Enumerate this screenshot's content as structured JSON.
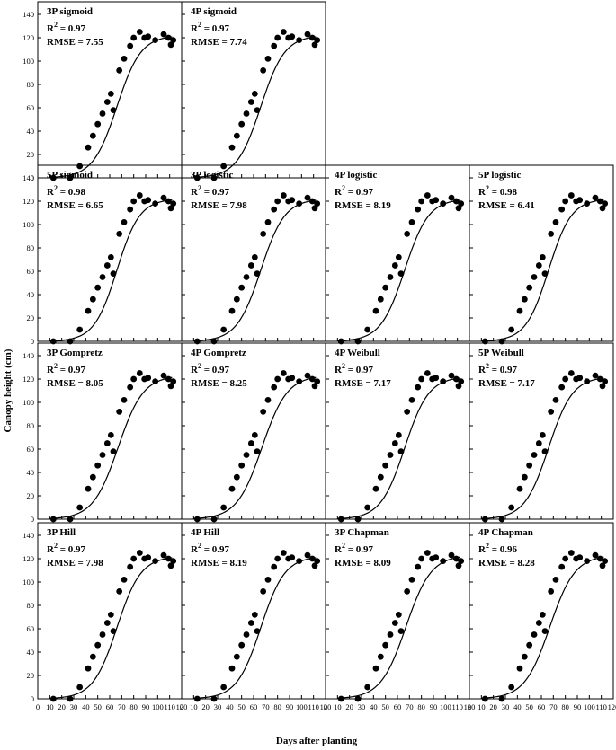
{
  "figure": {
    "ylabel": "Canopy height (cm)",
    "xlabel": "Days after planting"
  },
  "chart_data": {
    "type": "scatter",
    "xlabel": "Days after planting",
    "ylabel": "Canopy height (cm)",
    "xlim": [
      0,
      120
    ],
    "ylim": [
      0,
      140
    ],
    "xticks": [
      0,
      10,
      20,
      30,
      40,
      50,
      60,
      70,
      80,
      90,
      100,
      110,
      120
    ],
    "yticks": [
      0,
      20,
      40,
      60,
      80,
      100,
      120,
      140
    ],
    "observed": {
      "x": [
        13,
        27,
        35,
        42,
        46,
        50,
        54,
        58,
        61,
        63,
        68,
        72,
        77,
        80,
        85,
        89,
        92,
        98,
        105,
        109,
        111,
        113
      ],
      "y": [
        0,
        0,
        10,
        26,
        36,
        46,
        55,
        65,
        72,
        58,
        92,
        102,
        113,
        120,
        125,
        120,
        121,
        118,
        123,
        120,
        114,
        118
      ]
    },
    "panels": [
      {
        "row": 0,
        "col": 0,
        "model": "3P sigmoid",
        "r2": "0.97",
        "rmse": "7.55",
        "curve": {
          "asym": 122,
          "x0": 66,
          "b": 10
        }
      },
      {
        "row": 0,
        "col": 1,
        "model": "4P sigmoid",
        "r2": "0.97",
        "rmse": "7.74",
        "curve": {
          "asym": 122,
          "x0": 66,
          "b": 10
        }
      },
      {
        "row": 1,
        "col": 0,
        "model": "5P sigmoid",
        "r2": "0.98",
        "rmse": "6.65",
        "curve": {
          "asym": 122,
          "x0": 66,
          "b": 9.5
        }
      },
      {
        "row": 1,
        "col": 1,
        "model": "3P logistic",
        "r2": "0.97",
        "rmse": "7.98",
        "curve": {
          "asym": 122,
          "x0": 66,
          "b": 10
        }
      },
      {
        "row": 1,
        "col": 2,
        "model": "4P logistic",
        "r2": "0.97",
        "rmse": "8.19",
        "curve": {
          "asym": 122,
          "x0": 66,
          "b": 10
        }
      },
      {
        "row": 1,
        "col": 3,
        "model": "5P logistic",
        "r2": "0.98",
        "rmse": "6.41",
        "curve": {
          "asym": 122,
          "x0": 66,
          "b": 9.5
        }
      },
      {
        "row": 2,
        "col": 0,
        "model": "3P Gompretz",
        "r2": "0.97",
        "rmse": "8.05",
        "curve": {
          "asym": 123,
          "x0": 67,
          "b": 10.5
        }
      },
      {
        "row": 2,
        "col": 1,
        "model": "4P Gompretz",
        "r2": "0.97",
        "rmse": "8.25",
        "curve": {
          "asym": 123,
          "x0": 67,
          "b": 10.5
        }
      },
      {
        "row": 2,
        "col": 2,
        "model": "4P Weibull",
        "r2": "0.97",
        "rmse": "7.17",
        "curve": {
          "asym": 122,
          "x0": 66,
          "b": 10
        }
      },
      {
        "row": 2,
        "col": 3,
        "model": "5P Weibull",
        "r2": "0.97",
        "rmse": "7.17",
        "curve": {
          "asym": 122,
          "x0": 66,
          "b": 10
        }
      },
      {
        "row": 3,
        "col": 0,
        "model": "3P Hill",
        "r2": "0.97",
        "rmse": "7.98",
        "curve": {
          "asym": 122,
          "x0": 66,
          "b": 10
        }
      },
      {
        "row": 3,
        "col": 1,
        "model": "4P Hill",
        "r2": "0.97",
        "rmse": "8.19",
        "curve": {
          "asym": 122,
          "x0": 66,
          "b": 10
        }
      },
      {
        "row": 3,
        "col": 2,
        "model": "3P Chapman",
        "r2": "0.97",
        "rmse": "8.09",
        "curve": {
          "asym": 123,
          "x0": 67,
          "b": 10.5
        }
      },
      {
        "row": 3,
        "col": 3,
        "model": "4P Chapman",
        "r2": "0.96",
        "rmse": "8.28",
        "curve": {
          "asym": 123,
          "x0": 67,
          "b": 10.5
        }
      }
    ]
  }
}
